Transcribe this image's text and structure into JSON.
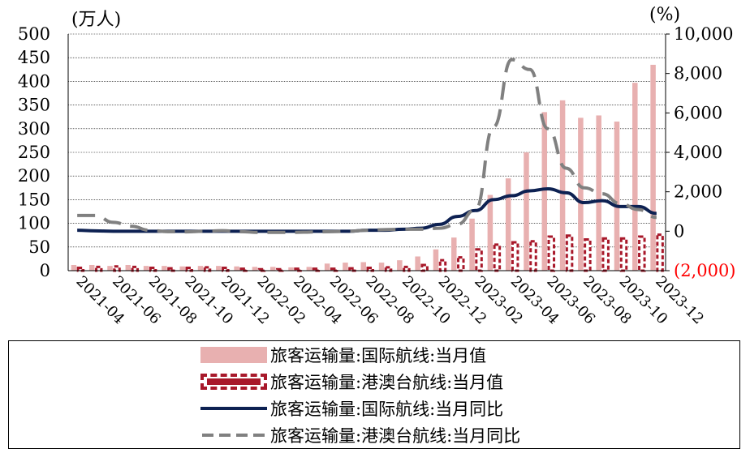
{
  "chart_data": {
    "type": "bar+line",
    "left_unit": "(万人)",
    "right_unit": "(%)",
    "left_axis": {
      "min": 0,
      "max": 500,
      "ticks": [
        "0",
        "50",
        "100",
        "150",
        "200",
        "250",
        "300",
        "350",
        "400",
        "450",
        "500"
      ]
    },
    "right_axis": {
      "min": -2000,
      "max": 10000,
      "ticks": [
        "(2,000)",
        "0",
        "2,000",
        "4,000",
        "6,000",
        "8,000",
        "10,000"
      ],
      "ticks_values": [
        -2000,
        0,
        2000,
        4000,
        6000,
        8000,
        10000
      ]
    },
    "categories": [
      "2021-04",
      "2021-05",
      "2021-06",
      "2021-07",
      "2021-08",
      "2021-09",
      "2021-10",
      "2021-11",
      "2021-12",
      "2022-01",
      "2022-02",
      "2022-03",
      "2022-04",
      "2022-05",
      "2022-06",
      "2022-07",
      "2022-08",
      "2022-09",
      "2022-10",
      "2022-11",
      "2022-12",
      "2023-01",
      "2023-02",
      "2023-03",
      "2023-04",
      "2023-05",
      "2023-06",
      "2023-07",
      "2023-08",
      "2023-09",
      "2023-10",
      "2023-11",
      "2023-12"
    ],
    "x_tick_labels": [
      "2021-04",
      "2021-06",
      "2021-08",
      "2021-10",
      "2021-12",
      "2022-02",
      "2022-04",
      "2022-06",
      "2022-08",
      "2022-10",
      "2022-12",
      "2023-02",
      "2023-04",
      "2023-06",
      "2023-08",
      "2023-10",
      "2023-12"
    ],
    "series": [
      {
        "name": "旅客运输量:国际航线:当月值",
        "kind": "bar",
        "axis": "left",
        "color": "#e8b0b0",
        "values": [
          12,
          12,
          10,
          12,
          10,
          10,
          9,
          10,
          10,
          9,
          8,
          8,
          7,
          8,
          15,
          17,
          18,
          17,
          22,
          30,
          45,
          70,
          110,
          160,
          195,
          250,
          335,
          360,
          323,
          328,
          315,
          397,
          435
        ]
      },
      {
        "name": "旅客运输量:港澳台航线:当月值",
        "kind": "bar",
        "axis": "left",
        "color": "#a8182a",
        "values": [
          6,
          8,
          9,
          8,
          6,
          5,
          6,
          7,
          6,
          4,
          3,
          3,
          4,
          4,
          4,
          5,
          6,
          7,
          8,
          12,
          22,
          28,
          45,
          55,
          60,
          62,
          72,
          74,
          66,
          68,
          68,
          72,
          76
        ]
      },
      {
        "name": "旅客运输量:国际航线:当月同比",
        "kind": "line",
        "axis": "right",
        "color": "#0d2152",
        "values": [
          50,
          20,
          0,
          0,
          0,
          0,
          0,
          0,
          0,
          0,
          0,
          0,
          0,
          0,
          0,
          0,
          50,
          50,
          100,
          150,
          350,
          750,
          1050,
          1600,
          1800,
          2050,
          2150,
          1950,
          1450,
          1550,
          1250,
          1250,
          900
        ]
      },
      {
        "name": "旅客运输量:港澳台航线:当月同比",
        "kind": "line",
        "axis": "right",
        "color": "#808080",
        "values": [
          800,
          800,
          450,
          250,
          50,
          -20,
          -30,
          0,
          30,
          -20,
          -60,
          -60,
          -60,
          -40,
          -20,
          0,
          50,
          80,
          100,
          100,
          150,
          350,
          1100,
          5300,
          8700,
          8200,
          5200,
          3200,
          2200,
          1900,
          1400,
          1100,
          700
        ]
      }
    ]
  }
}
